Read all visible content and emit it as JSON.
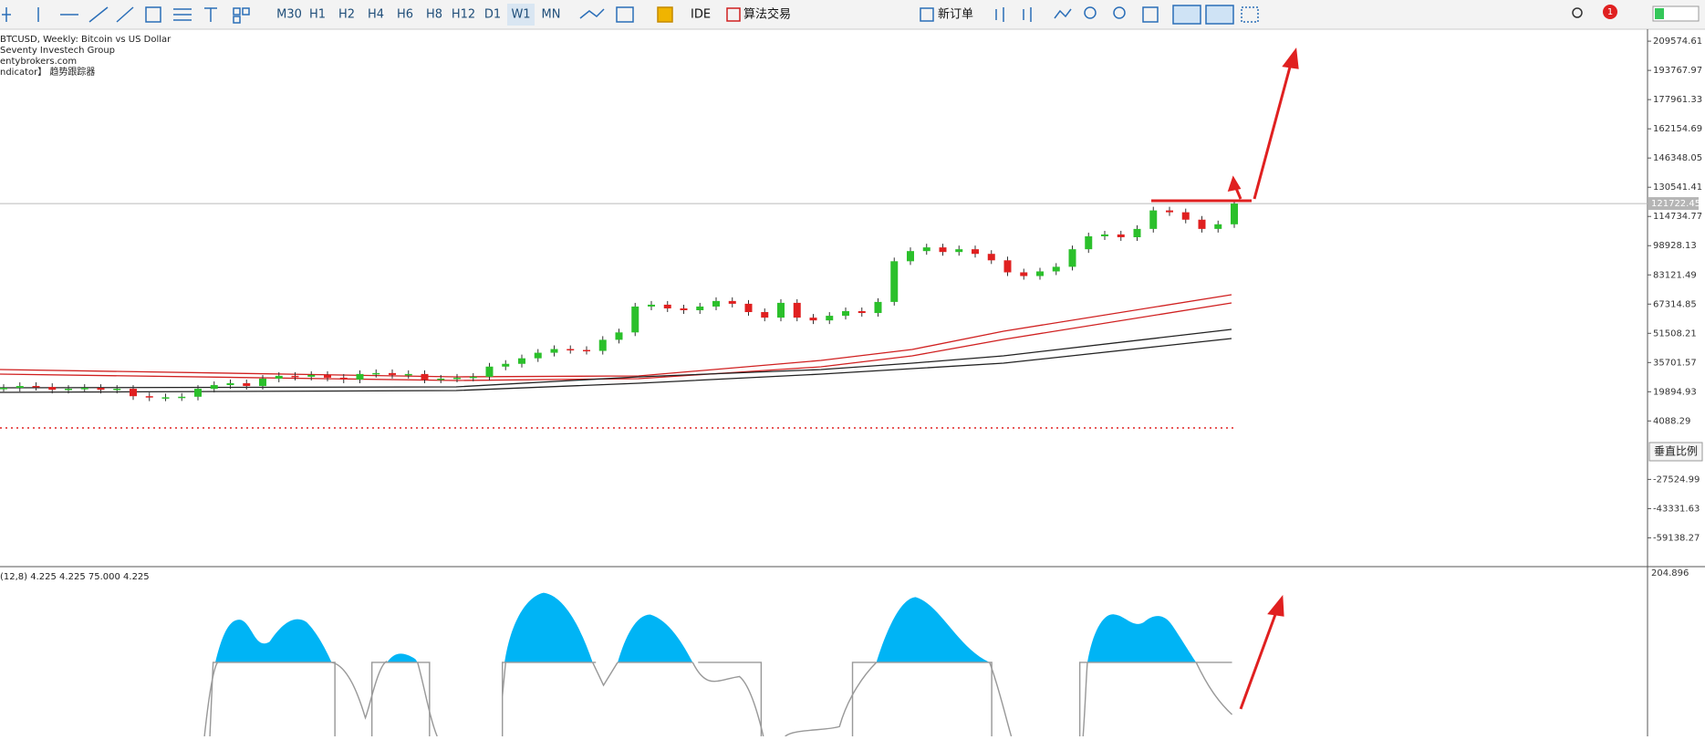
{
  "toolbar": {
    "timeframes": [
      "M30",
      "H1",
      "H2",
      "H4",
      "H6",
      "H8",
      "H12",
      "D1",
      "W1",
      "MN"
    ],
    "buttons": [
      "IDE",
      "算法交易",
      "新订单"
    ],
    "badge": "1"
  },
  "chart": {
    "symbol_info": [
      "BTCUSD, Weekly:  Bitcoin vs US Dollar",
      "Seventy Investech Group",
      "entybrokers.com",
      "ndicator】 趋势跟踪器"
    ],
    "ylim": [
      -74230,
      216050
    ],
    "yticks": [
      209574.61,
      193767.97,
      177961.33,
      162154.69,
      146348.05,
      130541.41,
      114734.77,
      98928.13,
      83121.49,
      67314.85,
      51508.21,
      35701.57,
      19894.93,
      4088.29,
      -27524.99,
      -43331.63,
      -59138.27
    ],
    "current_price": 121722.45,
    "candles": {
      "close": [
        22000,
        23000,
        22500,
        21000,
        21500,
        22000,
        21000,
        21500,
        17500,
        16800,
        16900,
        17200,
        21500,
        23500,
        24500,
        23000,
        27000,
        28500,
        28000,
        29000,
        27500,
        26500,
        29500,
        30000,
        29000,
        29500,
        26500,
        27000,
        27500,
        28000,
        33500,
        35000,
        38000,
        41000,
        43000,
        42500,
        42000,
        48000,
        52000,
        66000,
        67000,
        65000,
        64000,
        66000,
        69000,
        67500,
        63000,
        60000,
        68000,
        60000,
        58500,
        61000,
        63500,
        62500,
        68500,
        90500,
        96000,
        98000,
        95500,
        97000,
        94500,
        91000,
        84500,
        82500,
        85000,
        87500,
        97000,
        104000,
        105000,
        103500,
        108000,
        118000,
        117000,
        113000,
        108000,
        110500,
        121700
      ]
    }
  },
  "scale_button": "垂直比例",
  "indicator": {
    "label": "(12,8) 4.225 4.225 75.000 4.225",
    "axis_value": "204.896"
  }
}
